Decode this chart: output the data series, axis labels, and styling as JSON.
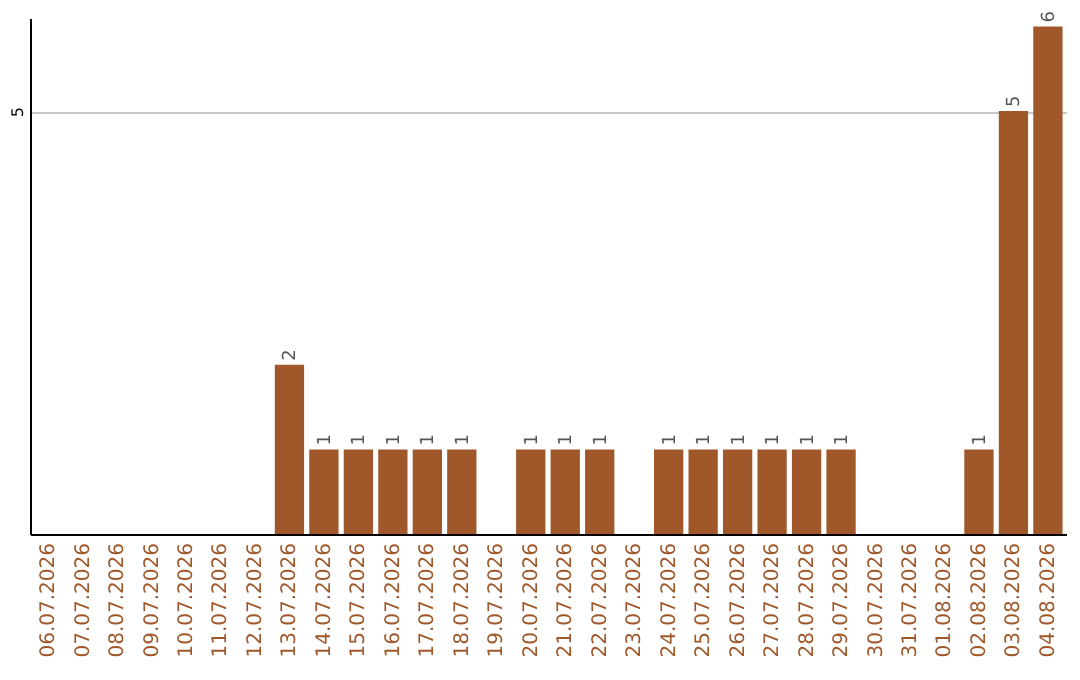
{
  "chart_data": {
    "type": "bar",
    "categories": [
      "06.07.2026",
      "07.07.2026",
      "08.07.2026",
      "09.07.2026",
      "10.07.2026",
      "11.07.2026",
      "12.07.2026",
      "13.07.2026",
      "14.07.2026",
      "15.07.2026",
      "16.07.2026",
      "17.07.2026",
      "18.07.2026",
      "19.07.2026",
      "20.07.2026",
      "21.07.2026",
      "22.07.2026",
      "23.07.2026",
      "24.07.2026",
      "25.07.2026",
      "26.07.2026",
      "27.07.2026",
      "28.07.2026",
      "29.07.2026",
      "30.07.2026",
      "31.07.2026",
      "01.08.2026",
      "02.08.2026",
      "03.08.2026",
      "04.08.2026"
    ],
    "values": [
      0,
      0,
      0,
      0,
      0,
      0,
      0,
      2,
      1,
      1,
      1,
      1,
      1,
      0,
      1,
      1,
      1,
      0,
      1,
      1,
      1,
      1,
      1,
      1,
      0,
      0,
      0,
      1,
      5,
      6
    ],
    "value_labels": [
      null,
      null,
      null,
      null,
      null,
      null,
      null,
      "2",
      "1",
      "1",
      "1",
      "1",
      "1",
      null,
      "1",
      "1",
      "1",
      null,
      "1",
      "1",
      "1",
      "1",
      "1",
      "1",
      null,
      null,
      null,
      "1",
      "5",
      "6"
    ],
    "color": "#a0582a",
    "ylim": [
      0,
      6.1
    ],
    "yticks": [
      5
    ],
    "grid": "y"
  }
}
